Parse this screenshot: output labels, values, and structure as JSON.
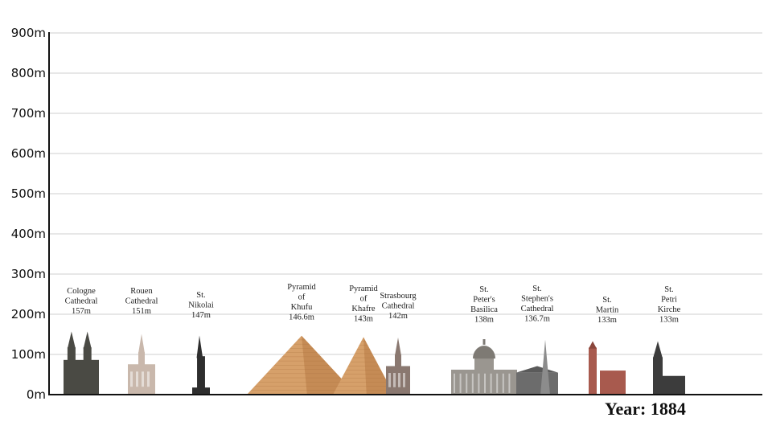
{
  "chart_data": {
    "type": "bar",
    "year_prefix": "Year:",
    "year": "1884",
    "y_ticks": [
      "0m",
      "100m",
      "200m",
      "300m",
      "400m",
      "500m",
      "600m",
      "700m",
      "800m",
      "900m"
    ],
    "ylim": [
      0,
      900
    ],
    "grid": true,
    "buildings": [
      {
        "label_lines": [
          "Cologne",
          "Cathedral",
          "157m"
        ],
        "height_m": 157,
        "shape": "gothic-twin"
      },
      {
        "label_lines": [
          "Rouen",
          "Cathedral",
          "151m"
        ],
        "height_m": 151,
        "shape": "cathedral-spire"
      },
      {
        "label_lines": [
          "St.",
          "Nikolai",
          "147m"
        ],
        "height_m": 147,
        "shape": "single-spire"
      },
      {
        "label_lines": [
          "Pyramid",
          "of",
          "Khufu",
          "146.6m"
        ],
        "height_m": 146.6,
        "shape": "pyramid"
      },
      {
        "label_lines": [
          "Pyramid",
          "of",
          "Khafre",
          "143m"
        ],
        "height_m": 143,
        "shape": "pyramid"
      },
      {
        "label_lines": [
          "Strasbourg",
          "Cathedral",
          "142m"
        ],
        "height_m": 142,
        "shape": "cathedral-spire"
      },
      {
        "label_lines": [
          "St.",
          "Peter's",
          "Basilica",
          "138m"
        ],
        "height_m": 138,
        "shape": "dome"
      },
      {
        "label_lines": [
          "St.",
          "Stephen's",
          "Cathedral",
          "136.7m"
        ],
        "height_m": 136.7,
        "shape": "stephens"
      },
      {
        "label_lines": [
          "St.",
          "Martin",
          "133m"
        ],
        "height_m": 133,
        "shape": "brick-church"
      },
      {
        "label_lines": [
          "St.",
          "Petri",
          "Kirche",
          "133m"
        ],
        "height_m": 133,
        "shape": "tower-church"
      }
    ],
    "colors": {
      "gothic_stone": "#4a4a44",
      "rouen_stone": "#c9b8ac",
      "dark_spire": "#2e2e2e",
      "pyramid_light": "#d6a06a",
      "pyramid_dark": "#b87a44",
      "strasbourg": "#8a7870",
      "basilica": "#9a9690",
      "stephens": "#6c6c6c",
      "brick": "#a85a4e",
      "petri": "#3c3c3c"
    }
  }
}
